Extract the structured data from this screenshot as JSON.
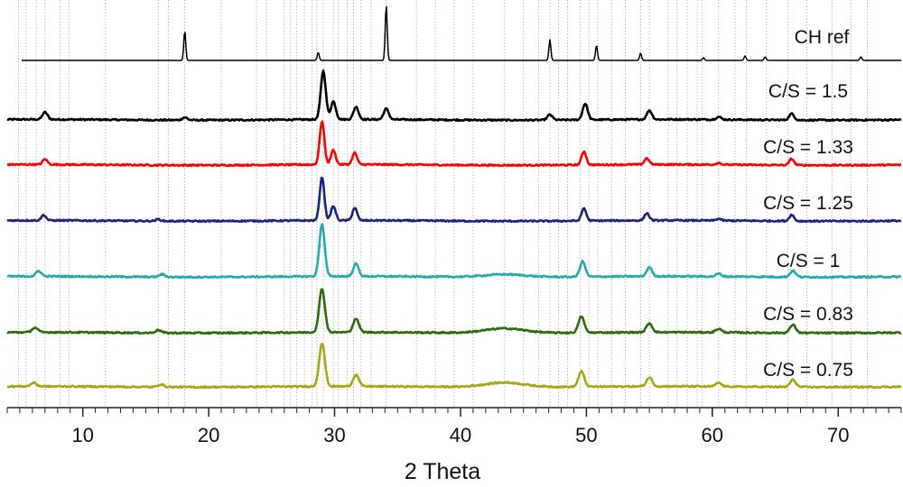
{
  "chart_data": {
    "type": "line",
    "title": "",
    "xlabel": "2 Theta",
    "ylabel": "",
    "xlim": [
      4,
      75
    ],
    "x_ticks": [
      10,
      20,
      30,
      40,
      50,
      60,
      70
    ],
    "x_tick_labels": [
      "10",
      "20",
      "30",
      "40",
      "50",
      "60",
      "70"
    ],
    "grid": "vertical dotted reference lines",
    "reference_lines_2theta": [
      4.9,
      5.5,
      6.3,
      7.0,
      8.2,
      8.9,
      11.8,
      16.0,
      16.8,
      18.1,
      21.0,
      23.8,
      24.6,
      26.0,
      26.5,
      27.0,
      27.6,
      28.2,
      28.6,
      29.1,
      29.9,
      30.3,
      31.0,
      31.5,
      32.1,
      32.9,
      34.1,
      36.5,
      38.0,
      39.5,
      41.0,
      43.5,
      45.0,
      46.2,
      47.1,
      47.8,
      48.5,
      49.5,
      50.2,
      50.9,
      52.0,
      53.1,
      54.3,
      55.0,
      56.5,
      57.2,
      58.0,
      58.8,
      59.2,
      60.5,
      61.8,
      62.7,
      64.3,
      66.0,
      67.5,
      69.5,
      71.0,
      72.3
    ],
    "series": [
      {
        "name": "CH ref",
        "color": "#000000",
        "baseline": 0,
        "peaks": [
          [
            18.1,
            33
          ],
          [
            28.7,
            9
          ],
          [
            34.1,
            62
          ],
          [
            47.1,
            23
          ],
          [
            50.8,
            17
          ],
          [
            54.3,
            8
          ],
          [
            59.3,
            3
          ],
          [
            62.6,
            5
          ],
          [
            64.2,
            4
          ],
          [
            71.8,
            4
          ]
        ]
      },
      {
        "name": "C/S = 1.5",
        "color": "#000000",
        "baseline": 0,
        "peaks": [
          [
            7.0,
            8
          ],
          [
            18.1,
            3
          ],
          [
            29.1,
            54
          ],
          [
            29.9,
            20
          ],
          [
            31.7,
            14
          ],
          [
            34.1,
            12
          ],
          [
            47.1,
            6
          ],
          [
            49.9,
            18
          ],
          [
            55.0,
            10
          ],
          [
            60.5,
            3
          ],
          [
            66.3,
            7
          ]
        ]
      },
      {
        "name": "C/S = 1.33",
        "color": "#ff0000",
        "baseline": 0,
        "peaks": [
          [
            7.0,
            6
          ],
          [
            29.0,
            48
          ],
          [
            29.9,
            16
          ],
          [
            31.6,
            13
          ],
          [
            49.8,
            15
          ],
          [
            54.8,
            7
          ],
          [
            60.5,
            2
          ],
          [
            66.3,
            7
          ]
        ]
      },
      {
        "name": "C/S = 1.25",
        "color": "#1a237e",
        "baseline": 0,
        "peaks": [
          [
            6.9,
            6
          ],
          [
            16.0,
            2
          ],
          [
            29.0,
            48
          ],
          [
            29.9,
            16
          ],
          [
            31.6,
            14
          ],
          [
            49.8,
            14
          ],
          [
            54.8,
            8
          ],
          [
            60.5,
            2
          ],
          [
            66.3,
            7
          ]
        ]
      },
      {
        "name": "C/S = 1",
        "color": "#26a9a9",
        "baseline": 0,
        "peaks": [
          [
            6.5,
            6
          ],
          [
            16.3,
            3
          ],
          [
            29.0,
            58
          ],
          [
            31.7,
            14
          ],
          [
            43.5,
            3
          ],
          [
            49.7,
            17
          ],
          [
            55.0,
            10
          ],
          [
            60.5,
            3
          ],
          [
            66.4,
            7
          ]
        ]
      },
      {
        "name": "C/S = 0.83",
        "color": "#2e6b10",
        "baseline": 0,
        "peaks": [
          [
            6.2,
            5
          ],
          [
            16.0,
            3
          ],
          [
            29.0,
            48
          ],
          [
            31.7,
            15
          ],
          [
            43.5,
            5
          ],
          [
            49.6,
            18
          ],
          [
            55.0,
            10
          ],
          [
            60.5,
            4
          ],
          [
            66.4,
            9
          ]
        ]
      },
      {
        "name": "C/S = 0.75",
        "color": "#a7a716",
        "baseline": 0,
        "peaks": [
          [
            6.1,
            4
          ],
          [
            16.2,
            3
          ],
          [
            29.0,
            48
          ],
          [
            31.7,
            13
          ],
          [
            43.5,
            5
          ],
          [
            49.6,
            17
          ],
          [
            55.0,
            10
          ],
          [
            60.5,
            4
          ],
          [
            66.4,
            8
          ]
        ]
      }
    ]
  }
}
